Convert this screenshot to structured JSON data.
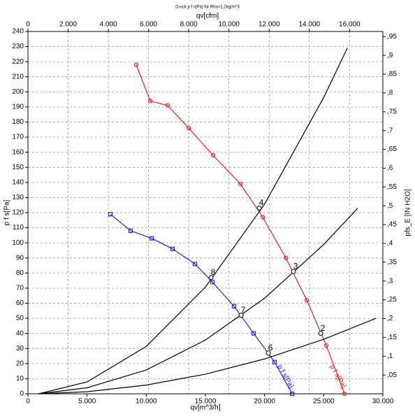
{
  "chart_data": {
    "type": "line",
    "title": "Druck p f s[Pa] für Rho=1,2kg/m^3",
    "xlabel": "qv[m^3/h]",
    "x2label": "qv[cfm]",
    "ylabel": "p f s[Pa]",
    "y2label": "pfs_E [IN H2O]",
    "xlim": [
      0,
      30000
    ],
    "xticks": [
      0,
      {
        "value": 5000,
        "label": "5.000"
      },
      {
        "value": 10000,
        "label": "10.000"
      },
      {
        "value": 15000,
        "label": "15.000"
      },
      {
        "value": 20000,
        "label": "20.000"
      },
      {
        "value": 25000,
        "label": "25.000"
      },
      {
        "value": 30000,
        "label": "30.000"
      }
    ],
    "x2lim": [
      0,
      17657
    ],
    "x2ticks": [
      0,
      {
        "value": 2000,
        "label": "2.000"
      },
      {
        "value": 4000,
        "label": "4.000"
      },
      {
        "value": 6000,
        "label": "6.000"
      },
      {
        "value": 8000,
        "label": "8.000"
      },
      {
        "value": 10000,
        "label": "10.000"
      },
      {
        "value": 12000,
        "label": "12.000"
      },
      {
        "value": 14000,
        "label": "14.000"
      },
      {
        "value": 16000,
        "label": "16.000"
      }
    ],
    "ylim": [
      0,
      240
    ],
    "yticks": [
      0,
      10,
      20,
      30,
      40,
      50,
      60,
      70,
      80,
      90,
      100,
      110,
      120,
      130,
      140,
      150,
      160,
      170,
      180,
      190,
      200,
      210,
      220,
      230,
      240
    ],
    "y2lim": [
      0,
      0.9636
    ],
    "y2ticks": [
      {
        "value": 0.05,
        "label": ",05"
      },
      {
        "value": 0.1,
        "label": ",1"
      },
      {
        "value": 0.15,
        "label": ",15"
      },
      {
        "value": 0.2,
        "label": ",2"
      },
      {
        "value": 0.25,
        "label": ",25"
      },
      {
        "value": 0.3,
        "label": ",3"
      },
      {
        "value": 0.35,
        "label": ",35"
      },
      {
        "value": 0.4,
        "label": ",4"
      },
      {
        "value": 0.45,
        "label": ",45"
      },
      {
        "value": 0.5,
        "label": ",5"
      },
      {
        "value": 0.55,
        "label": ",55"
      },
      {
        "value": 0.6,
        "label": ",6"
      },
      {
        "value": 0.65,
        "label": ",65"
      },
      {
        "value": 0.7,
        "label": ",7"
      },
      {
        "value": 0.75,
        "label": ",75"
      },
      {
        "value": 0.8,
        "label": ",8"
      },
      {
        "value": 0.85,
        "label": ",85"
      },
      {
        "value": 0.9,
        "label": ",9"
      },
      {
        "value": 0.95,
        "label": ",95"
      }
    ],
    "grid": true,
    "series": [
      {
        "name": "p f s[Pa]",
        "color": "#e02020",
        "marker": "circle",
        "x": [
          9150,
          10340,
          11810,
          13590,
          15650,
          17960,
          19850,
          21800,
          23570,
          25220,
          26760
        ],
        "values": [
          218,
          194,
          191,
          176,
          158,
          139,
          117,
          90,
          62,
          32,
          0
        ]
      },
      {
        "name": "p f s[Pa]",
        "color": "#2020e0",
        "marker": "square",
        "x": [
          6970,
          8680,
          10460,
          12230,
          14120,
          15590,
          17420,
          19080,
          20850,
          22330
        ],
        "values": [
          119,
          108,
          103,
          96,
          86,
          74,
          58,
          40,
          21,
          0
        ]
      },
      {
        "color": "#000000",
        "x": [
          900,
          5000,
          10000,
          15000,
          20000,
          25000,
          27000
        ],
        "values": [
          0,
          7.9,
          31.4,
          70.7,
          125.6,
          196.3,
          229
        ]
      },
      {
        "color": "#000000",
        "x": [
          900,
          5000,
          10000,
          15000,
          20000,
          25000,
          27880
        ],
        "values": [
          0,
          4,
          15.8,
          35.6,
          63.3,
          98.9,
          123
        ]
      },
      {
        "color": "#000000",
        "x": [
          900,
          5000,
          10000,
          15000,
          20000,
          25000,
          29415
        ],
        "values": [
          0,
          1.4,
          5.8,
          13,
          23.1,
          36.1,
          50
        ]
      }
    ],
    "points": [
      {
        "label": "4",
        "x": 19550,
        "y": 123
      },
      {
        "label": "3",
        "x": 22450,
        "y": 81
      },
      {
        "label": "8",
        "x": 15480,
        "y": 77
      },
      {
        "label": "7",
        "x": 18020,
        "y": 52
      },
      {
        "label": "2",
        "x": 24750,
        "y": 40
      },
      {
        "label": "6",
        "x": 20320,
        "y": 27
      }
    ]
  }
}
